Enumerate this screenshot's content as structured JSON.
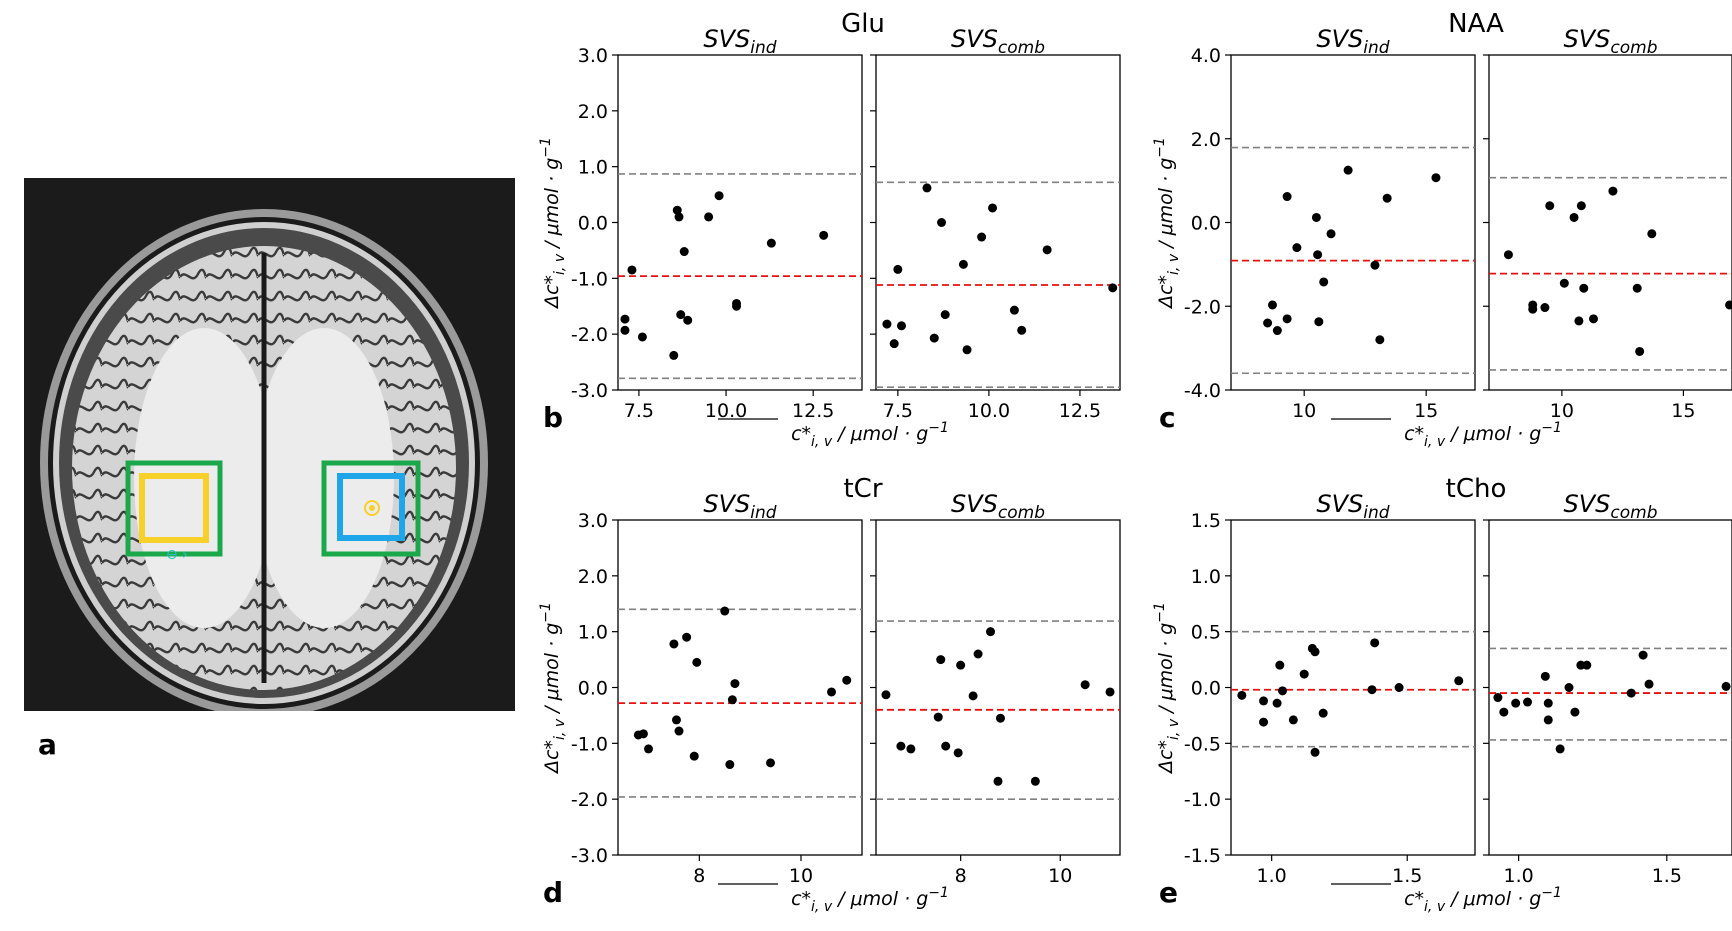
{
  "panel_a_label": "a",
  "brain_image": {
    "voxels": [
      {
        "name": "left-voxel",
        "outer_color": "#1aa84b",
        "inner_color": "#f7d02a"
      },
      {
        "name": "right-voxel",
        "outer_color": "#1aa84b",
        "inner_color": "#1ea6e8"
      }
    ]
  },
  "labels": {
    "ylabel": "Δc*",
    "ylabel_sub": "i, v",
    "ylabel_units": " / μmol · g",
    "ylabel_exp": "−1",
    "xlabel": "c*",
    "xlabel_sub": "i, v",
    "xlabel_units": " / μmol · g",
    "xlabel_exp": "−1",
    "svs": "SVS",
    "svs_ind_sub": "ind",
    "svs_comb_sub": "comb"
  },
  "colors": {
    "points": "#000000",
    "bias_line": "#e8100f",
    "loa_line": "#808080",
    "axes": "#000000"
  },
  "chart_data": [
    {
      "type": "scatter",
      "panel": "b",
      "title": "Glu",
      "ylim": [
        -3.0,
        3.0
      ],
      "yticks": [
        "3.0",
        "2.0",
        "1.0",
        "0.0",
        "-1.0",
        "-2.0",
        "-3.0"
      ],
      "ytick_values": [
        3,
        2,
        1,
        0,
        -1,
        -2,
        -3
      ],
      "subplots": [
        {
          "name": "SVS_ind",
          "xlim": [
            6.9,
            13.9
          ],
          "xticks": [
            "7.5",
            "10.0",
            "12.5"
          ],
          "xtick_values": [
            7.5,
            10,
            12.5
          ],
          "bias": -0.96,
          "loa": [
            0.87,
            -2.79
          ],
          "points": [
            [
              7.1,
              -1.73
            ],
            [
              7.1,
              -1.93
            ],
            [
              7.3,
              -0.85
            ],
            [
              7.6,
              -2.05
            ],
            [
              8.5,
              -2.38
            ],
            [
              8.6,
              0.22
            ],
            [
              8.65,
              0.1
            ],
            [
              8.7,
              -1.65
            ],
            [
              8.8,
              -0.52
            ],
            [
              8.9,
              -1.75
            ],
            [
              9.5,
              0.1
            ],
            [
              9.8,
              0.48
            ],
            [
              10.3,
              -1.45
            ],
            [
              10.3,
              -1.5
            ],
            [
              11.3,
              -0.37
            ],
            [
              12.8,
              -0.23
            ]
          ]
        },
        {
          "name": "SVS_comb",
          "xlim": [
            6.9,
            13.6
          ],
          "xticks": [
            "7.5",
            "10.0",
            "12.5"
          ],
          "xtick_values": [
            7.5,
            10,
            12.5
          ],
          "bias": -1.12,
          "loa": [
            0.72,
            -2.95
          ],
          "points": [
            [
              7.2,
              -1.82
            ],
            [
              7.4,
              -2.17
            ],
            [
              7.5,
              -0.84
            ],
            [
              7.6,
              -1.85
            ],
            [
              8.3,
              0.62
            ],
            [
              8.5,
              -2.07
            ],
            [
              8.7,
              0.0
            ],
            [
              8.8,
              -1.65
            ],
            [
              9.3,
              -0.75
            ],
            [
              9.4,
              -2.28
            ],
            [
              9.8,
              -0.26
            ],
            [
              10.1,
              0.26
            ],
            [
              10.7,
              -1.57
            ],
            [
              10.9,
              -1.93
            ],
            [
              11.6,
              -0.49
            ],
            [
              13.4,
              -1.17
            ]
          ]
        }
      ]
    },
    {
      "type": "scatter",
      "panel": "c",
      "title": "NAA",
      "ylim": [
        -4.0,
        4.0
      ],
      "yticks": [
        "4.0",
        "2.0",
        "0.0",
        "-2.0",
        "-4.0"
      ],
      "ytick_values": [
        4,
        2,
        0,
        -2,
        -4
      ],
      "subplots": [
        {
          "name": "SVS_ind",
          "xlim": [
            7.0,
            17.0
          ],
          "xticks": [
            "10",
            "15"
          ],
          "xtick_values": [
            10,
            15
          ],
          "bias": -0.91,
          "loa": [
            1.79,
            -3.6
          ],
          "points": [
            [
              8.5,
              -2.4
            ],
            [
              8.7,
              -1.97
            ],
            [
              8.9,
              -2.58
            ],
            [
              9.3,
              -2.3
            ],
            [
              9.3,
              0.62
            ],
            [
              9.7,
              -0.6
            ],
            [
              10.5,
              0.12
            ],
            [
              10.55,
              -0.77
            ],
            [
              10.6,
              -2.37
            ],
            [
              10.8,
              -1.42
            ],
            [
              11.1,
              -0.27
            ],
            [
              11.8,
              1.25
            ],
            [
              12.9,
              -1.02
            ],
            [
              13.1,
              -2.8
            ],
            [
              13.4,
              0.58
            ],
            [
              15.4,
              1.07
            ]
          ]
        },
        {
          "name": "SVS_comb",
          "xlim": [
            7.0,
            17.0
          ],
          "xticks": [
            "10",
            "15"
          ],
          "xtick_values": [
            10,
            15
          ],
          "bias": -1.22,
          "loa": [
            1.07,
            -3.52
          ],
          "points": [
            [
              7.8,
              -0.77
            ],
            [
              8.8,
              -1.97
            ],
            [
              8.8,
              -2.07
            ],
            [
              9.3,
              -2.03
            ],
            [
              9.5,
              0.4
            ],
            [
              10.1,
              -1.45
            ],
            [
              10.5,
              0.12
            ],
            [
              10.7,
              -2.35
            ],
            [
              10.8,
              0.4
            ],
            [
              10.9,
              -1.57
            ],
            [
              11.3,
              -2.3
            ],
            [
              12.1,
              0.75
            ],
            [
              13.1,
              -1.57
            ],
            [
              13.2,
              -3.08
            ],
            [
              13.7,
              -0.27
            ],
            [
              16.9,
              -1.97
            ]
          ]
        }
      ]
    },
    {
      "type": "scatter",
      "panel": "d",
      "title": "tCr",
      "ylim": [
        -3.0,
        3.0
      ],
      "yticks": [
        "3.0",
        "2.0",
        "1.0",
        "0.0",
        "-1.0",
        "-2.0",
        "-3.0"
      ],
      "ytick_values": [
        3,
        2,
        1,
        0,
        -1,
        -2,
        -3
      ],
      "subplots": [
        {
          "name": "SVS_ind",
          "xlim": [
            6.4,
            11.2
          ],
          "xticks": [
            "8",
            "10"
          ],
          "xtick_values": [
            8,
            10
          ],
          "bias": -0.28,
          "loa": [
            1.4,
            -1.96
          ],
          "points": [
            [
              6.8,
              -0.85
            ],
            [
              6.9,
              -0.83
            ],
            [
              7.0,
              -1.1
            ],
            [
              7.5,
              0.78
            ],
            [
              7.55,
              -0.58
            ],
            [
              7.6,
              -0.78
            ],
            [
              7.75,
              0.9
            ],
            [
              7.9,
              -1.23
            ],
            [
              7.95,
              0.45
            ],
            [
              8.5,
              1.37
            ],
            [
              8.6,
              -1.38
            ],
            [
              8.65,
              -0.22
            ],
            [
              8.7,
              0.07
            ],
            [
              9.4,
              -1.35
            ],
            [
              10.6,
              -0.08
            ],
            [
              10.9,
              0.13
            ]
          ]
        },
        {
          "name": "SVS_comb",
          "xlim": [
            6.3,
            11.2
          ],
          "xticks": [
            "8",
            "10"
          ],
          "xtick_values": [
            8,
            10
          ],
          "bias": -0.4,
          "loa": [
            1.19,
            -2.0
          ],
          "points": [
            [
              6.5,
              -0.13
            ],
            [
              6.8,
              -1.05
            ],
            [
              7.0,
              -1.1
            ],
            [
              7.55,
              -0.53
            ],
            [
              7.6,
              0.5
            ],
            [
              7.7,
              -1.05
            ],
            [
              7.95,
              -1.17
            ],
            [
              8.0,
              0.4
            ],
            [
              8.25,
              -0.15
            ],
            [
              8.35,
              0.6
            ],
            [
              8.6,
              1.0
            ],
            [
              8.75,
              -1.68
            ],
            [
              8.8,
              -0.55
            ],
            [
              9.5,
              -1.68
            ],
            [
              10.5,
              0.05
            ],
            [
              11.0,
              -0.08
            ]
          ]
        }
      ]
    },
    {
      "type": "scatter",
      "panel": "e",
      "title": "tCho",
      "ylim": [
        -1.5,
        1.5
      ],
      "yticks": [
        "1.5",
        "1.0",
        "0.5",
        "0.0",
        "-0.5",
        "-1.0",
        "-1.5"
      ],
      "ytick_values": [
        1.5,
        1,
        0.5,
        0,
        -0.5,
        -1,
        -1.5
      ],
      "subplots": [
        {
          "name": "SVS_ind",
          "xlim": [
            0.85,
            1.75
          ],
          "xticks": [
            "1.0",
            "1.5"
          ],
          "xtick_values": [
            1.0,
            1.5
          ],
          "bias": -0.02,
          "loa": [
            0.5,
            -0.53
          ],
          "points": [
            [
              0.89,
              -0.07
            ],
            [
              0.97,
              -0.12
            ],
            [
              0.97,
              -0.31
            ],
            [
              1.02,
              -0.14
            ],
            [
              1.03,
              0.2
            ],
            [
              1.04,
              -0.03
            ],
            [
              1.08,
              -0.29
            ],
            [
              1.12,
              0.12
            ],
            [
              1.15,
              0.35
            ],
            [
              1.16,
              0.32
            ],
            [
              1.16,
              -0.58
            ],
            [
              1.19,
              -0.23
            ],
            [
              1.37,
              -0.02
            ],
            [
              1.38,
              0.4
            ],
            [
              1.47,
              0.0
            ],
            [
              1.69,
              0.06
            ]
          ]
        },
        {
          "name": "SVS_comb",
          "xlim": [
            0.9,
            1.72
          ],
          "xticks": [
            "1.0",
            "1.5"
          ],
          "xtick_values": [
            1.0,
            1.5
          ],
          "bias": -0.05,
          "loa": [
            0.35,
            -0.47
          ],
          "points": [
            [
              0.93,
              -0.09
            ],
            [
              0.95,
              -0.22
            ],
            [
              0.99,
              -0.14
            ],
            [
              1.03,
              -0.13
            ],
            [
              1.09,
              0.1
            ],
            [
              1.1,
              -0.29
            ],
            [
              1.1,
              -0.14
            ],
            [
              1.14,
              -0.55
            ],
            [
              1.17,
              0.0
            ],
            [
              1.19,
              -0.22
            ],
            [
              1.21,
              0.2
            ],
            [
              1.23,
              0.2
            ],
            [
              1.38,
              -0.05
            ],
            [
              1.42,
              0.29
            ],
            [
              1.44,
              0.03
            ],
            [
              1.7,
              0.01
            ]
          ]
        }
      ]
    }
  ]
}
